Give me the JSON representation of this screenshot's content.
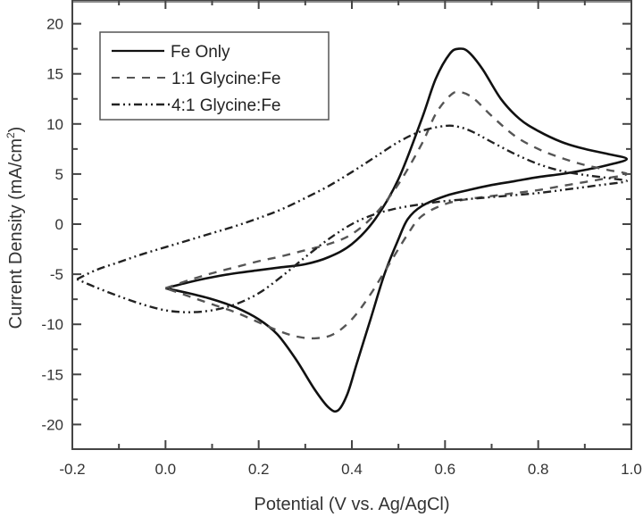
{
  "chart_data": {
    "type": "line",
    "title": "",
    "xlabel": "Potential (V vs. Ag/AgCl)",
    "ylabel": "Current Density (mA/cm",
    "ylabel_superscript": "2",
    "ylabel_close": ")",
    "xlim": [
      -0.2,
      1.0
    ],
    "ylim": [
      -22.5,
      22.5
    ],
    "xticks": [
      -0.2,
      0.0,
      0.2,
      0.4,
      0.6,
      0.8,
      1.0
    ],
    "xtick_labels": [
      "-0.2",
      "0.0",
      "0.2",
      "0.4",
      "0.6",
      "0.8",
      "1.0"
    ],
    "yticks": [
      -20,
      -15,
      -10,
      -5,
      0,
      5,
      10,
      15,
      20
    ],
    "ytick_labels": [
      "-20",
      "-15",
      "-10",
      "-5",
      "0",
      "5",
      "10",
      "15",
      "20"
    ],
    "grid": false,
    "legend_position": "upper left",
    "series": [
      {
        "name": "Fe Only",
        "style": "solid",
        "color": "#111111",
        "points": [
          [
            0.0,
            -6.4
          ],
          [
            0.05,
            -5.8
          ],
          [
            0.1,
            -5.3
          ],
          [
            0.15,
            -4.9
          ],
          [
            0.2,
            -4.6
          ],
          [
            0.25,
            -4.3
          ],
          [
            0.3,
            -4.0
          ],
          [
            0.35,
            -3.3
          ],
          [
            0.4,
            -2.0
          ],
          [
            0.45,
            0.5
          ],
          [
            0.5,
            4.5
          ],
          [
            0.55,
            10.5
          ],
          [
            0.58,
            14.5
          ],
          [
            0.61,
            17.0
          ],
          [
            0.63,
            17.5
          ],
          [
            0.65,
            17.2
          ],
          [
            0.68,
            15.5
          ],
          [
            0.72,
            12.5
          ],
          [
            0.76,
            10.5
          ],
          [
            0.8,
            9.3
          ],
          [
            0.85,
            8.2
          ],
          [
            0.9,
            7.5
          ],
          [
            0.95,
            7.0
          ],
          [
            0.99,
            6.5
          ],
          [
            0.95,
            5.9
          ],
          [
            0.9,
            5.4
          ],
          [
            0.85,
            5.0
          ],
          [
            0.8,
            4.7
          ],
          [
            0.75,
            4.3
          ],
          [
            0.7,
            3.9
          ],
          [
            0.65,
            3.4
          ],
          [
            0.6,
            2.8
          ],
          [
            0.55,
            1.8
          ],
          [
            0.52,
            0.5
          ],
          [
            0.5,
            -1.5
          ],
          [
            0.47,
            -5.0
          ],
          [
            0.44,
            -9.5
          ],
          [
            0.41,
            -14.0
          ],
          [
            0.39,
            -17.0
          ],
          [
            0.37,
            -18.6
          ],
          [
            0.35,
            -18.3
          ],
          [
            0.32,
            -16.5
          ],
          [
            0.28,
            -13.5
          ],
          [
            0.24,
            -11.0
          ],
          [
            0.2,
            -9.5
          ],
          [
            0.15,
            -8.3
          ],
          [
            0.1,
            -7.5
          ],
          [
            0.05,
            -6.9
          ],
          [
            0.0,
            -6.4
          ]
        ]
      },
      {
        "name": "1:1 Glycine:Fe",
        "style": "dashed",
        "color": "#555555",
        "points": [
          [
            0.0,
            -6.4
          ],
          [
            0.05,
            -5.6
          ],
          [
            0.1,
            -4.9
          ],
          [
            0.15,
            -4.3
          ],
          [
            0.2,
            -3.7
          ],
          [
            0.25,
            -3.2
          ],
          [
            0.3,
            -2.6
          ],
          [
            0.35,
            -2.0
          ],
          [
            0.4,
            -1.0
          ],
          [
            0.45,
            1.0
          ],
          [
            0.5,
            4.0
          ],
          [
            0.55,
            8.0
          ],
          [
            0.58,
            11.0
          ],
          [
            0.61,
            12.8
          ],
          [
            0.63,
            13.2
          ],
          [
            0.66,
            12.6
          ],
          [
            0.7,
            10.8
          ],
          [
            0.75,
            8.8
          ],
          [
            0.8,
            7.5
          ],
          [
            0.85,
            6.6
          ],
          [
            0.9,
            5.9
          ],
          [
            0.95,
            5.4
          ],
          [
            0.99,
            5.0
          ],
          [
            0.95,
            4.6
          ],
          [
            0.9,
            4.2
          ],
          [
            0.85,
            3.8
          ],
          [
            0.8,
            3.4
          ],
          [
            0.75,
            3.1
          ],
          [
            0.7,
            2.8
          ],
          [
            0.65,
            2.5
          ],
          [
            0.6,
            2.0
          ],
          [
            0.55,
            0.8
          ],
          [
            0.52,
            -1.0
          ],
          [
            0.48,
            -4.0
          ],
          [
            0.44,
            -7.0
          ],
          [
            0.4,
            -9.5
          ],
          [
            0.36,
            -11.0
          ],
          [
            0.32,
            -11.4
          ],
          [
            0.28,
            -11.2
          ],
          [
            0.24,
            -10.6
          ],
          [
            0.2,
            -9.8
          ],
          [
            0.15,
            -8.8
          ],
          [
            0.1,
            -8.0
          ],
          [
            0.05,
            -7.2
          ],
          [
            0.0,
            -6.4
          ]
        ]
      },
      {
        "name": "4:1 Glycine:Fe",
        "style": "dash-dot-dot",
        "color": "#222222",
        "points": [
          [
            -0.19,
            -5.5
          ],
          [
            -0.15,
            -4.6
          ],
          [
            -0.1,
            -3.8
          ],
          [
            -0.05,
            -3.0
          ],
          [
            0.0,
            -2.3
          ],
          [
            0.05,
            -1.6
          ],
          [
            0.1,
            -0.9
          ],
          [
            0.15,
            -0.2
          ],
          [
            0.2,
            0.6
          ],
          [
            0.25,
            1.5
          ],
          [
            0.3,
            2.6
          ],
          [
            0.35,
            3.8
          ],
          [
            0.4,
            5.2
          ],
          [
            0.45,
            6.7
          ],
          [
            0.5,
            8.2
          ],
          [
            0.55,
            9.3
          ],
          [
            0.6,
            9.8
          ],
          [
            0.63,
            9.7
          ],
          [
            0.66,
            9.2
          ],
          [
            0.7,
            8.2
          ],
          [
            0.75,
            7.0
          ],
          [
            0.8,
            6.0
          ],
          [
            0.85,
            5.3
          ],
          [
            0.9,
            4.9
          ],
          [
            0.95,
            4.6
          ],
          [
            0.99,
            4.3
          ],
          [
            0.95,
            4.0
          ],
          [
            0.9,
            3.7
          ],
          [
            0.85,
            3.4
          ],
          [
            0.8,
            3.1
          ],
          [
            0.75,
            2.9
          ],
          [
            0.7,
            2.7
          ],
          [
            0.65,
            2.5
          ],
          [
            0.6,
            2.3
          ],
          [
            0.55,
            2.0
          ],
          [
            0.5,
            1.6
          ],
          [
            0.45,
            1.0
          ],
          [
            0.4,
            0.0
          ],
          [
            0.35,
            -1.5
          ],
          [
            0.3,
            -3.3
          ],
          [
            0.25,
            -5.2
          ],
          [
            0.2,
            -6.9
          ],
          [
            0.15,
            -8.0
          ],
          [
            0.1,
            -8.6
          ],
          [
            0.05,
            -8.8
          ],
          [
            0.0,
            -8.6
          ],
          [
            -0.05,
            -8.0
          ],
          [
            -0.1,
            -7.2
          ],
          [
            -0.15,
            -6.3
          ],
          [
            -0.19,
            -5.5
          ]
        ]
      }
    ]
  },
  "legend": {
    "items": [
      {
        "label": "Fe Only"
      },
      {
        "label": "1:1 Glycine:Fe"
      },
      {
        "label": "4:1 Glycine:Fe"
      }
    ]
  }
}
